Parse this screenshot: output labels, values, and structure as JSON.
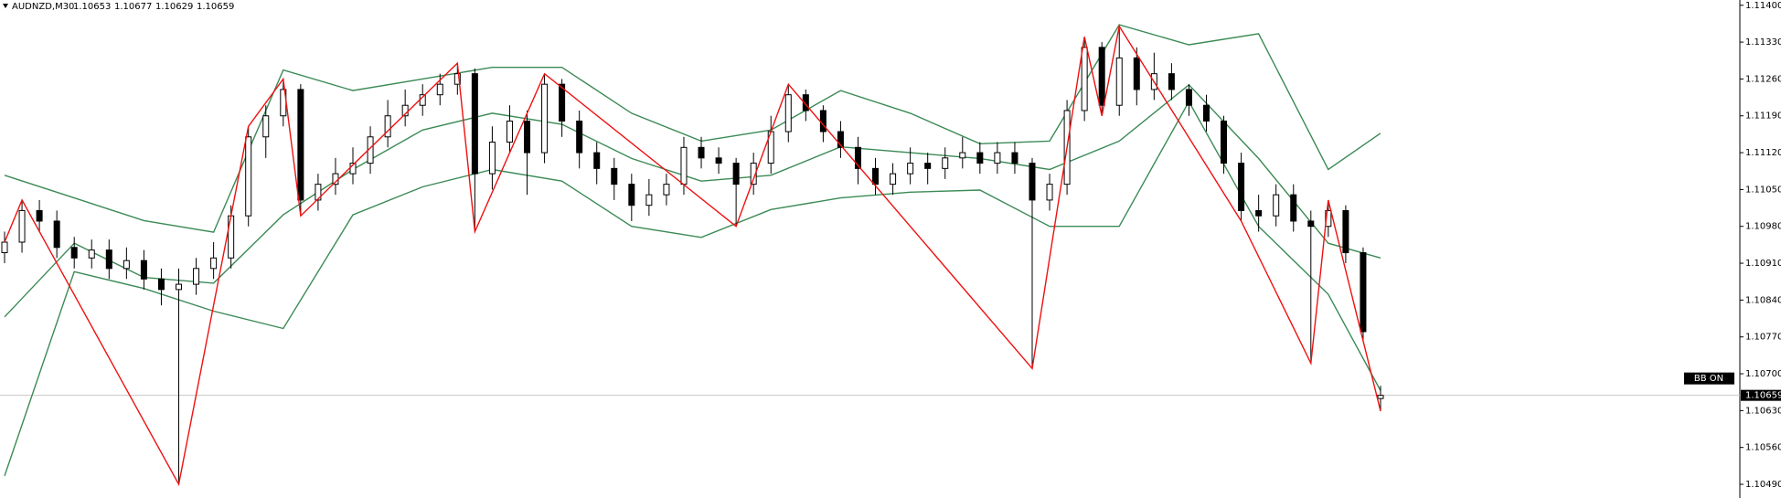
{
  "chart_data": {
    "type": "candlestick",
    "title": "AUDNZD,M30",
    "open": [
      1.1093,
      1.1095,
      1.1101,
      1.1099,
      1.1094,
      1.1092,
      1.10935,
      1.109,
      1.10915,
      1.1088,
      1.1086,
      1.1087,
      1.109,
      1.1092,
      1.11,
      1.1115,
      1.1119,
      1.1124,
      1.1103,
      1.1106,
      1.1108,
      1.111,
      1.1115,
      1.1119,
      1.1121,
      1.1123,
      1.1125,
      1.1127,
      1.1108,
      1.1114,
      1.1118,
      1.1112,
      1.1125,
      1.1118,
      1.1112,
      1.1109,
      1.1106,
      1.1102,
      1.1104,
      1.1106,
      1.1113,
      1.1111,
      1.111,
      1.1106,
      1.111,
      1.1116,
      1.1123,
      1.112,
      1.1116,
      1.1113,
      1.1109,
      1.1106,
      1.1108,
      1.111,
      1.1109,
      1.1111,
      1.1112,
      1.111,
      1.1112,
      1.111,
      1.1103,
      1.1106,
      1.112,
      1.1132,
      1.1121,
      1.113,
      1.1124,
      1.1127,
      1.1124,
      1.1121,
      1.1118,
      1.111,
      1.1101,
      1.11,
      1.1104,
      1.1099,
      1.1098,
      1.1101,
      1.1093,
      1.10653
    ],
    "high": [
      1.1097,
      1.1103,
      1.1103,
      1.1101,
      1.1096,
      1.10955,
      1.10955,
      1.1094,
      1.10935,
      1.109,
      1.109,
      1.1092,
      1.1095,
      1.1102,
      1.1117,
      1.1121,
      1.1126,
      1.1125,
      1.1108,
      1.1111,
      1.1113,
      1.1117,
      1.1122,
      1.1124,
      1.1125,
      1.1127,
      1.1129,
      1.1128,
      1.1117,
      1.1121,
      1.112,
      1.1127,
      1.1126,
      1.112,
      1.1114,
      1.1111,
      1.1108,
      1.1107,
      1.1108,
      1.1115,
      1.1115,
      1.1113,
      1.1111,
      1.1112,
      1.1119,
      1.1125,
      1.1124,
      1.1121,
      1.1118,
      1.1115,
      1.1111,
      1.111,
      1.1113,
      1.1112,
      1.1113,
      1.1115,
      1.1114,
      1.1114,
      1.1114,
      1.1111,
      1.1108,
      1.1122,
      1.1134,
      1.1133,
      1.1136,
      1.1132,
      1.1131,
      1.1129,
      1.1125,
      1.1123,
      1.1119,
      1.1112,
      1.1104,
      1.1106,
      1.1106,
      1.1101,
      1.1103,
      1.1102,
      1.1094,
      1.10677
    ],
    "low": [
      1.1091,
      1.1093,
      1.1097,
      1.1092,
      1.109,
      1.109,
      1.1088,
      1.1088,
      1.1086,
      1.1083,
      1.1049,
      1.1085,
      1.1088,
      1.109,
      1.1098,
      1.1111,
      1.1117,
      1.11,
      1.1101,
      1.1104,
      1.1106,
      1.1108,
      1.1113,
      1.1117,
      1.1119,
      1.1121,
      1.1123,
      1.1097,
      1.1105,
      1.1112,
      1.1104,
      1.111,
      1.1115,
      1.1109,
      1.1106,
      1.1103,
      1.1099,
      1.11,
      1.1102,
      1.1104,
      1.1109,
      1.1108,
      1.1098,
      1.1104,
      1.1108,
      1.1114,
      1.1118,
      1.1114,
      1.1111,
      1.1106,
      1.1104,
      1.1104,
      1.1106,
      1.1106,
      1.1107,
      1.1109,
      1.1108,
      1.1108,
      1.1108,
      1.1071,
      1.1101,
      1.1104,
      1.1118,
      1.1119,
      1.1119,
      1.1121,
      1.1122,
      1.1122,
      1.1119,
      1.1116,
      1.1108,
      1.1099,
      1.1097,
      1.1098,
      1.1097,
      1.1072,
      1.1096,
      1.1091,
      1.1076,
      1.10629
    ],
    "close": [
      1.1095,
      1.1101,
      1.1099,
      1.1094,
      1.1092,
      1.10935,
      1.109,
      1.10915,
      1.1088,
      1.1086,
      1.1087,
      1.109,
      1.1092,
      1.11,
      1.1115,
      1.1119,
      1.1124,
      1.1103,
      1.1106,
      1.1108,
      1.111,
      1.1115,
      1.1119,
      1.1121,
      1.1123,
      1.1125,
      1.1127,
      1.1108,
      1.1114,
      1.1118,
      1.1112,
      1.1125,
      1.1118,
      1.1112,
      1.1109,
      1.1106,
      1.1102,
      1.1104,
      1.1106,
      1.1113,
      1.1111,
      1.111,
      1.1106,
      1.111,
      1.1116,
      1.1123,
      1.112,
      1.1116,
      1.1113,
      1.1109,
      1.1106,
      1.1108,
      1.111,
      1.1109,
      1.1111,
      1.1112,
      1.111,
      1.1112,
      1.111,
      1.1103,
      1.1106,
      1.112,
      1.1132,
      1.1121,
      1.113,
      1.1124,
      1.1127,
      1.1124,
      1.1121,
      1.1118,
      1.111,
      1.1101,
      1.11,
      1.1104,
      1.1099,
      1.1098,
      1.1101,
      1.1093,
      1.1078,
      1.10659
    ],
    "bollinger": {
      "color": "#3b8a55",
      "x": [
        0,
        4,
        8,
        12,
        16,
        20,
        24,
        28,
        32,
        36,
        40,
        44,
        48,
        52,
        56,
        60,
        64,
        68,
        72,
        76,
        79
      ],
      "upper": [
        1.11077,
        1.11034,
        1.10991,
        1.10969,
        1.11277,
        1.11238,
        1.1126,
        1.11282,
        1.11282,
        1.11195,
        1.11142,
        1.11163,
        1.11238,
        1.11195,
        1.11137,
        1.11142,
        1.11363,
        1.11325,
        1.11346,
        1.11088,
        1.11157
      ],
      "middle": [
        1.10808,
        1.10948,
        1.10883,
        1.10872,
        1.11002,
        1.11088,
        1.11163,
        1.11195,
        1.11174,
        1.11109,
        1.11066,
        1.11077,
        1.11131,
        1.1112,
        1.11109,
        1.11088,
        1.11142,
        1.11249,
        1.11109,
        1.10948,
        1.1092
      ],
      "lower": [
        1.10506,
        1.10894,
        1.10862,
        1.10819,
        1.10786,
        1.11002,
        1.11055,
        1.11088,
        1.11066,
        1.1098,
        1.10959,
        1.11012,
        1.11034,
        1.11045,
        1.11049,
        1.1098,
        1.1098,
        1.11217,
        1.1098,
        1.10851,
        1.10668
      ]
    },
    "zigzag": {
      "color": "#ee1111",
      "x": [
        0,
        1,
        10,
        14,
        16,
        17,
        26,
        27,
        31,
        42,
        45,
        59,
        62,
        63,
        64,
        71,
        75,
        76,
        79
      ],
      "values": [
        1.1095,
        1.1103,
        1.1049,
        1.1117,
        1.1126,
        1.11,
        1.1129,
        1.1097,
        1.1127,
        1.1098,
        1.1125,
        1.1071,
        1.1134,
        1.1119,
        1.1136,
        1.1099,
        1.1072,
        1.1103,
        1.10629
      ]
    },
    "indicator_label": "BB ON",
    "ylim": [
      1.10464,
      1.1141
    ],
    "yticks": [
      {
        "value": 1.114,
        "label": "1.11400"
      },
      {
        "value": 1.1133,
        "label": "1.11330"
      },
      {
        "value": 1.1126,
        "label": "1.11260"
      },
      {
        "value": 1.1119,
        "label": "1.11190"
      },
      {
        "value": 1.1112,
        "label": "1.11120"
      },
      {
        "value": 1.1105,
        "label": "1.11050"
      },
      {
        "value": 1.1098,
        "label": "1.10980"
      },
      {
        "value": 1.1091,
        "label": "1.10910"
      },
      {
        "value": 1.1084,
        "label": "1.10840"
      },
      {
        "value": 1.1077,
        "label": "1.10770"
      },
      {
        "value": 1.107,
        "label": "1.10700"
      },
      {
        "value": 1.1063,
        "label": "1.10630"
      },
      {
        "value": 1.1056,
        "label": "1.10560"
      },
      {
        "value": 1.1049,
        "label": "1.10490"
      }
    ]
  }
}
